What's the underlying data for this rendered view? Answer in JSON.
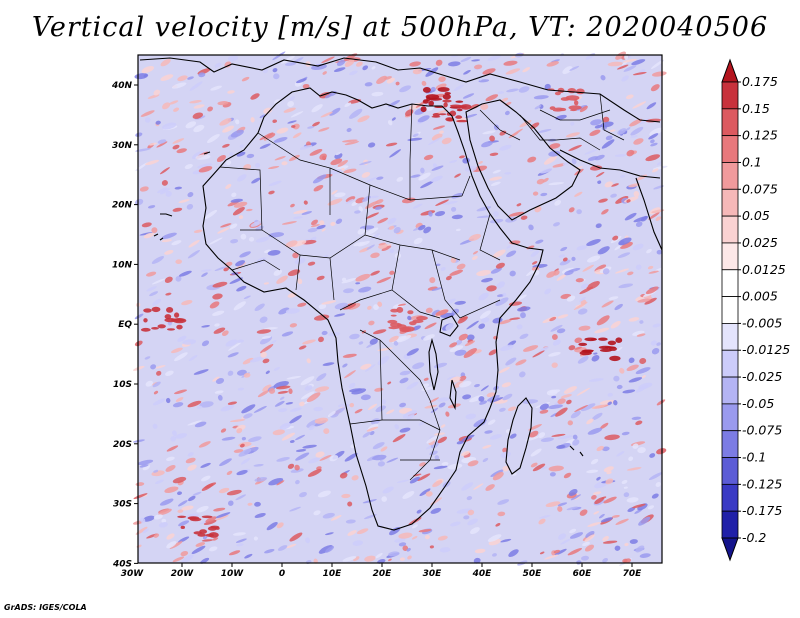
{
  "title": "Vertical velocity [m/s] at 500hPa, VT: 2020040506",
  "credit": "GrADS: IGES/COLA",
  "map": {
    "lat_labels": [
      "40N",
      "30N",
      "20N",
      "10N",
      "EQ",
      "10S",
      "20S",
      "30S",
      "40S"
    ],
    "lon_labels": [
      "30W",
      "20W",
      "10W",
      "0",
      "10E",
      "20E",
      "30E",
      "40E",
      "50E",
      "60E",
      "70E"
    ]
  },
  "colorbar": {
    "labels": [
      "0.175",
      "0.15",
      "0.125",
      "0.1",
      "0.075",
      "0.05",
      "0.025",
      "0.0125",
      "0.005",
      "-0.005",
      "-0.0125",
      "-0.025",
      "-0.05",
      "-0.075",
      "-0.1",
      "-0.125",
      "-0.175",
      "-0.2"
    ],
    "colors": [
      "#b4141e",
      "#c8323c",
      "#dc5a60",
      "#e8787c",
      "#f09a9c",
      "#f6b8b8",
      "#fad2d2",
      "#fde8e8",
      "#ffffff",
      "#ffffff",
      "#e4e4fc",
      "#ccccfa",
      "#b4b4f4",
      "#9a9aee",
      "#7c7ce4",
      "#5c5cd6",
      "#3a3ac4",
      "#2020a8",
      "#14148c"
    ]
  },
  "colors": {
    "land_outline": "#000000",
    "frame": "#000000"
  }
}
